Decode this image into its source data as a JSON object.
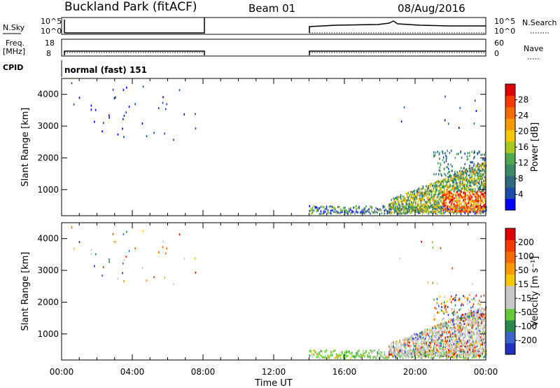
{
  "header": {
    "site": "Buckland Park (fitACF)",
    "beam": "Beam 01",
    "date": "08/Aug/2016"
  },
  "top_panels": {
    "nsky_label": "N.Sky",
    "nsky_ticks": [
      "10^5",
      "10^0"
    ],
    "nsearch_label": "N.Search",
    "nsearch_ticks": [
      "10^5",
      "10^0"
    ],
    "freq_label": "Freq.",
    "freq_unit": "[MHz]",
    "freq_ticks": [
      "18",
      "8"
    ],
    "nave_label": "Nave",
    "nave_ticks": [
      "60",
      "0"
    ],
    "cpid_label": "CPID",
    "cpid_value": "normal (fast) 151"
  },
  "colors": {
    "power_scale": [
      "#0000ff",
      "#1e4ca8",
      "#2f6b7a",
      "#3e8a66",
      "#4fa84f",
      "#a8c820",
      "#f5c800",
      "#f59a00",
      "#f56a00",
      "#f53a00",
      "#e00000"
    ],
    "velocity_scale": [
      "#2030c0",
      "#3a64c8",
      "#2a8a4a",
      "#66c83a",
      "#c8c8c8",
      "#c8c8c8",
      "#f5c800",
      "#f59a00",
      "#f56a00",
      "#f53a00",
      "#e00000"
    ]
  },
  "chart_data": [
    {
      "type": "heatmap",
      "name": "power",
      "xlabel": "Time UT",
      "ylabel": "Slant Range [km]",
      "x_ticks": [
        "00:00",
        "04:00",
        "08:00",
        "12:00",
        "16:00",
        "20:00",
        "00:00"
      ],
      "y_ticks": [
        "1000",
        "2000",
        "3000",
        "4000"
      ],
      "xlim": [
        0,
        24
      ],
      "ylim": [
        180,
        4500
      ],
      "colorbar_label": "Power [dB]",
      "colorbar_ticks": [
        "4",
        "8",
        "12",
        "16",
        "20",
        "24",
        "28"
      ],
      "data_gap": [
        8,
        14
      ]
    },
    {
      "type": "heatmap",
      "name": "velocity",
      "xlabel": "Time UT",
      "ylabel": "Slant Range [km]",
      "x_ticks": [
        "00:00",
        "04:00",
        "08:00",
        "12:00",
        "16:00",
        "20:00",
        "00:00"
      ],
      "y_ticks": [
        "1000",
        "2000",
        "3000",
        "4000"
      ],
      "xlim": [
        0,
        24
      ],
      "ylim": [
        180,
        4500
      ],
      "colorbar_label": "Velocity [m s⁻¹]",
      "colorbar_ticks": [
        "200",
        "100",
        "50",
        "15",
        "-15",
        "-50",
        "-100",
        "-200"
      ],
      "data_gap": [
        8,
        14
      ]
    }
  ]
}
